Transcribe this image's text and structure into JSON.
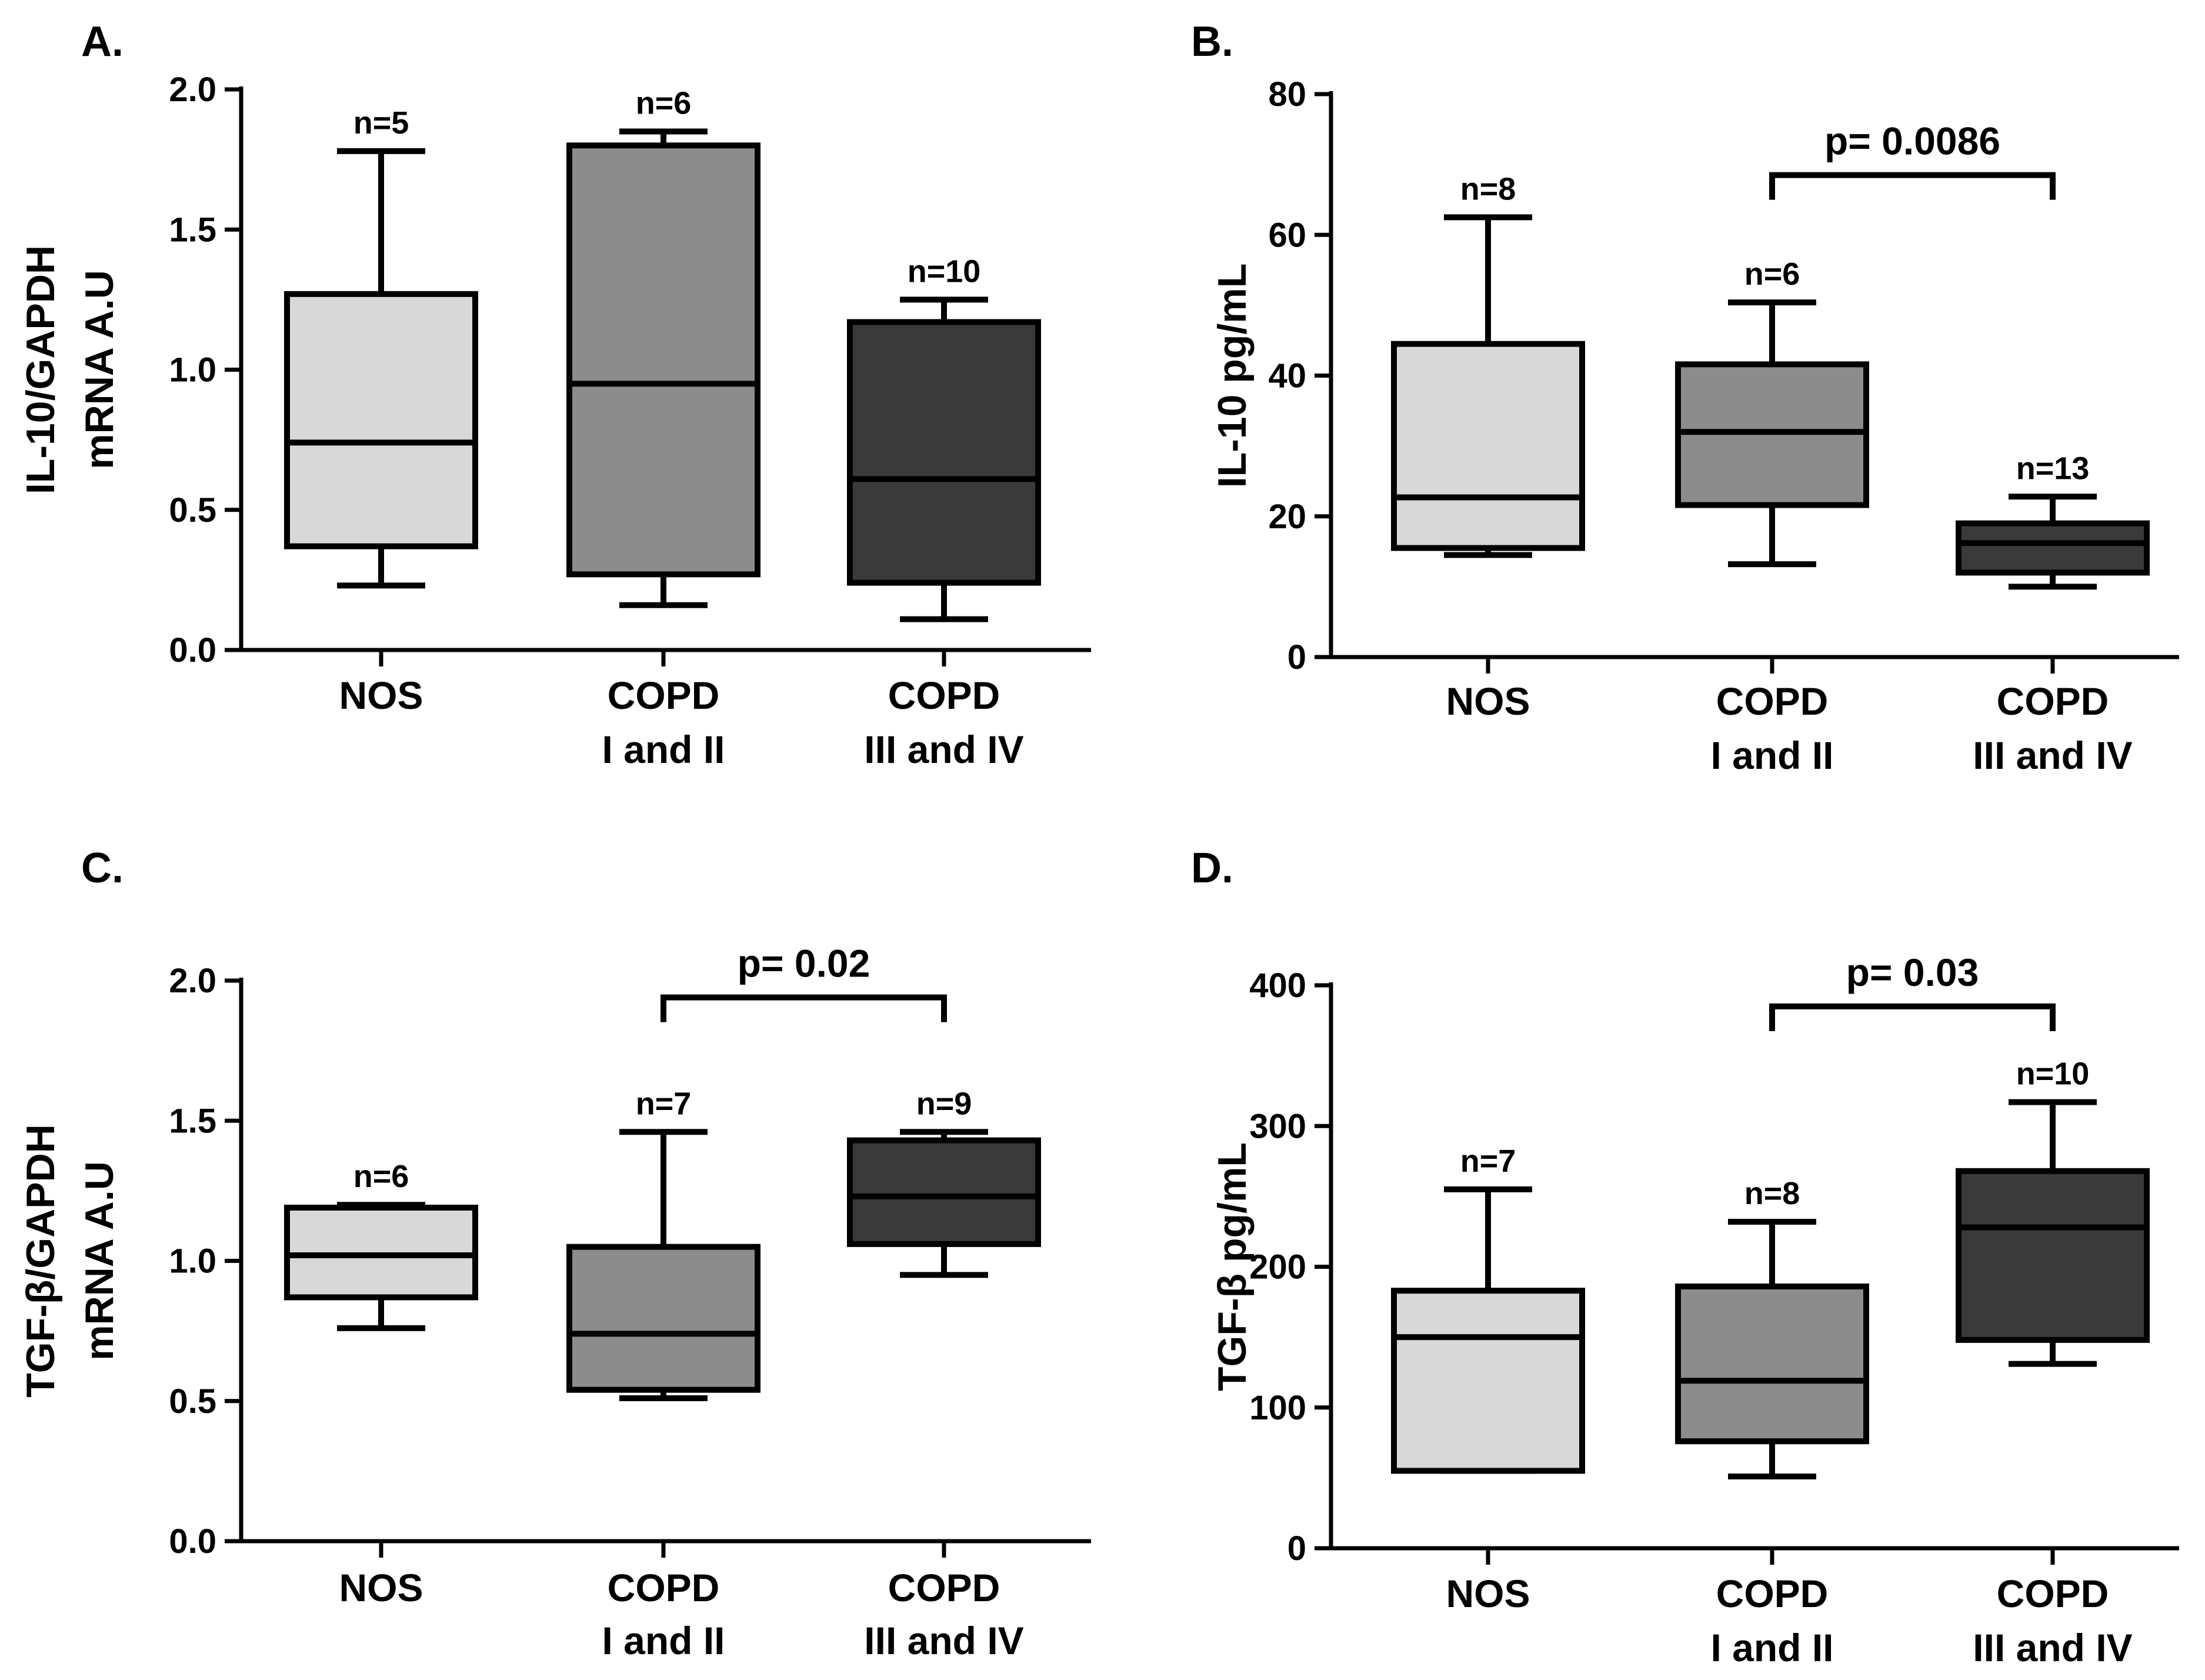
{
  "chart_data": [
    {
      "type": "box",
      "panel": "A.",
      "ylabel": [
        "IL-10/GAPDH",
        "mRNA A.U"
      ],
      "ylim": [
        0,
        2.0
      ],
      "yticks": [
        0.0,
        0.5,
        1.0,
        1.5,
        2.0
      ],
      "ytick_labels": [
        "0.0",
        "0.5",
        "1.0",
        "1.5",
        "2.0"
      ],
      "categories": [
        [
          "NOS"
        ],
        [
          "COPD",
          "I and II"
        ],
        [
          "COPD",
          "III and IV"
        ]
      ],
      "colors": [
        "#d8d8d8",
        "#8c8c8c",
        "#3a3a3a"
      ],
      "boxes": [
        {
          "min": 0.23,
          "q1": 0.37,
          "median": 0.74,
          "q3": 1.27,
          "max": 1.78,
          "n": "n=5"
        },
        {
          "min": 0.16,
          "q1": 0.27,
          "median": 0.95,
          "q3": 1.8,
          "max": 1.85,
          "n": "n=6"
        },
        {
          "min": 0.11,
          "q1": 0.24,
          "median": 0.61,
          "q3": 1.17,
          "max": 1.25,
          "n": "n=10"
        }
      ],
      "comparisons": []
    },
    {
      "type": "box",
      "panel": "B.",
      "ylabel": [
        "IL-10 pg/mL"
      ],
      "ylim": [
        0,
        80
      ],
      "yticks": [
        0,
        20,
        40,
        60,
        80
      ],
      "ytick_labels": [
        "0",
        "20",
        "40",
        "60",
        "80"
      ],
      "categories": [
        [
          "NOS"
        ],
        [
          "COPD",
          "I and II"
        ],
        [
          "COPD",
          "III and IV"
        ]
      ],
      "colors": [
        "#d8d8d8",
        "#8c8c8c",
        "#3a3a3a"
      ],
      "boxes": [
        {
          "min": 14.5,
          "q1": 15.5,
          "median": 22.7,
          "q3": 44.5,
          "max": 62.5,
          "n": "n=8"
        },
        {
          "min": 13.2,
          "q1": 21.6,
          "median": 32.0,
          "q3": 41.6,
          "max": 50.4,
          "n": "n=6"
        },
        {
          "min": 10.0,
          "q1": 12.0,
          "median": 16.2,
          "q3": 19.0,
          "max": 22.8,
          "n": "n=13"
        }
      ],
      "comparisons": [
        {
          "from": 1,
          "to": 2,
          "y": 68.5,
          "label": "p= 0.0086"
        }
      ]
    },
    {
      "type": "box",
      "panel": "C.",
      "ylabel": [
        "TGF-β/GAPDH",
        "mRNA A.U"
      ],
      "ylim": [
        0,
        2.0
      ],
      "yticks": [
        0.0,
        0.5,
        1.0,
        1.5,
        2.0
      ],
      "ytick_labels": [
        "0.0",
        "0.5",
        "1.0",
        "1.5",
        "2.0"
      ],
      "categories": [
        [
          "NOS"
        ],
        [
          "COPD",
          "I and II"
        ],
        [
          "COPD",
          "III and IV"
        ]
      ],
      "colors": [
        "#d8d8d8",
        "#8c8c8c",
        "#3a3a3a"
      ],
      "boxes": [
        {
          "min": 0.76,
          "q1": 0.87,
          "median": 1.02,
          "q3": 1.19,
          "max": 1.2,
          "n": "n=6"
        },
        {
          "min": 0.51,
          "q1": 0.54,
          "median": 0.74,
          "q3": 1.05,
          "max": 1.46,
          "n": "n=7"
        },
        {
          "min": 0.95,
          "q1": 1.06,
          "median": 1.23,
          "q3": 1.43,
          "max": 1.46,
          "n": "n=9"
        }
      ],
      "comparisons": [
        {
          "from": 1,
          "to": 2,
          "y": 1.94,
          "label": "p= 0.02"
        }
      ]
    },
    {
      "type": "box",
      "panel": "D.",
      "ylabel": [
        "TGF-β pg/mL"
      ],
      "ylim": [
        0,
        400
      ],
      "yticks": [
        0,
        100,
        200,
        300,
        400
      ],
      "ytick_labels": [
        "0",
        "100",
        "200",
        "300",
        "400"
      ],
      "categories": [
        [
          "NOS"
        ],
        [
          "COPD",
          "I and II"
        ],
        [
          "COPD",
          "III and IV"
        ]
      ],
      "colors": [
        "#d8d8d8",
        "#8c8c8c",
        "#3a3a3a"
      ],
      "boxes": [
        {
          "min": 55,
          "q1": 55,
          "median": 150,
          "q3": 183,
          "max": 255,
          "n": "n=7"
        },
        {
          "min": 51,
          "q1": 76,
          "median": 119,
          "q3": 186,
          "max": 232,
          "n": "n=8"
        },
        {
          "min": 131,
          "q1": 148,
          "median": 228,
          "q3": 268,
          "max": 317,
          "n": "n=10"
        }
      ],
      "comparisons": [
        {
          "from": 1,
          "to": 2,
          "y": 385,
          "label": "p= 0.03"
        }
      ]
    }
  ]
}
